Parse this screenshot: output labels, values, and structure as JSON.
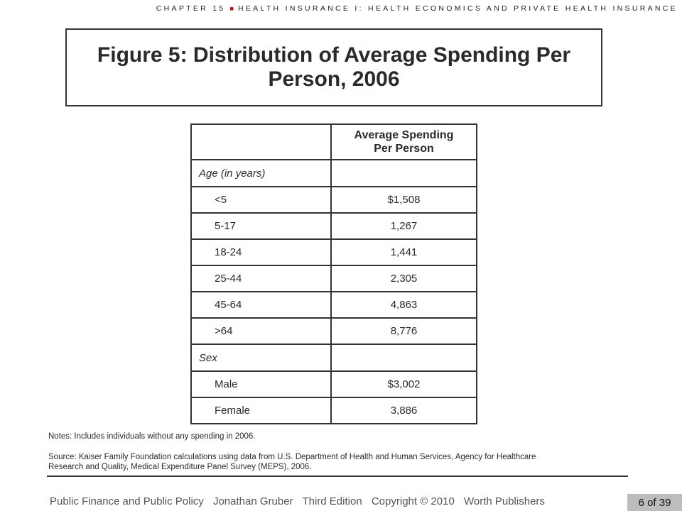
{
  "header": {
    "chapter": "CHAPTER 15",
    "separator": "■",
    "subject": "HEALTH INSURANCE I: HEALTH ECONOMICS AND PRIVATE HEALTH INSURANCE"
  },
  "figure": {
    "title_line1": "Figure 5: Distribution of Average Spending Per",
    "title_line2": "Person, 2006"
  },
  "table": {
    "column_header_line1": "Average Spending",
    "column_header_line2": "Per Person",
    "sections": [
      {
        "heading": "Age (in years)",
        "rows": [
          {
            "label": "<5",
            "value": "$1,508"
          },
          {
            "label": "5-17",
            "value": "1,267"
          },
          {
            "label": "18-24",
            "value": "1,441"
          },
          {
            "label": "25-44",
            "value": "2,305"
          },
          {
            "label": "45-64",
            "value": "4,863"
          },
          {
            "label": ">64",
            "value": "8,776"
          }
        ]
      },
      {
        "heading": "Sex",
        "rows": [
          {
            "label": "Male",
            "value": "$3,002"
          },
          {
            "label": "Female",
            "value": "3,886"
          }
        ]
      }
    ]
  },
  "notes": "Notes: Includes individuals without any spending in 2006.",
  "source_line1": "Source: Kaiser Family Foundation calculations using data from U.S. Department of Health and Human Services, Agency for Healthcare",
  "source_line2": "Research and Quality, Medical Expenditure Panel Survey (MEPS), 2006.",
  "footer": {
    "book": "Public Finance and Public Policy",
    "author": "Jonathan Gruber",
    "edition": "Third Edition",
    "copyright": "Copyright © 2010",
    "publisher": "Worth Publishers",
    "page": "6 of 39"
  }
}
